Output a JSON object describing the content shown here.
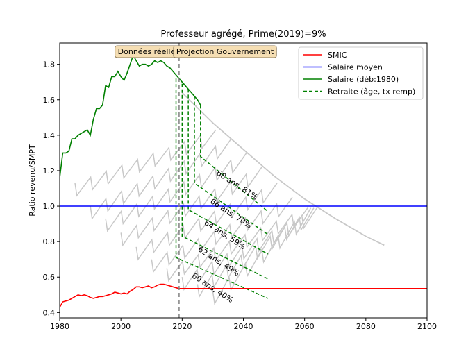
{
  "chart_data": {
    "type": "line",
    "title": "Professeur agrégé, Prime(2019)=9%",
    "xlabel": "",
    "ylabel": "Ratio revenu/SMPT",
    "xlim": [
      1980,
      2100
    ],
    "ylim": [
      0.37,
      1.92
    ],
    "xticks": [
      1980,
      2000,
      2020,
      2040,
      2060,
      2080,
      2100
    ],
    "yticks": [
      0.4,
      0.6,
      0.8,
      1.0,
      1.2,
      1.4,
      1.6,
      1.8
    ],
    "grid": false,
    "legend_position": "top-right",
    "colors": {
      "smic": "#ff0000",
      "salaire_moyen": "#0000ff",
      "salaire": "#008000",
      "retraite": "#008000",
      "background_curves": "#c8c8c8",
      "divider": "#808080",
      "box_fill": "#f5deb3",
      "box_edge": "#8c7a5a"
    },
    "region_labels": [
      {
        "text": "Données réelles",
        "x": 2009
      },
      {
        "text": "Projection Gouvernement",
        "x": 2034
      }
    ],
    "divider_x": 2019,
    "series": [
      {
        "name": "SMIC",
        "color": "#ff0000",
        "style": "solid",
        "x": [
          1980,
          1981,
          1982,
          1983,
          1984,
          1985,
          1986,
          1987,
          1988,
          1989,
          1990,
          1991,
          1992,
          1993,
          1994,
          1995,
          1996,
          1997,
          1998,
          1999,
          2000,
          2001,
          2002,
          2003,
          2004,
          2005,
          2006,
          2007,
          2008,
          2009,
          2010,
          2011,
          2012,
          2013,
          2014,
          2015,
          2016,
          2017,
          2018,
          2019,
          2040,
          2060,
          2080,
          2100
        ],
        "y": [
          0.43,
          0.46,
          0.465,
          0.47,
          0.48,
          0.49,
          0.5,
          0.495,
          0.5,
          0.495,
          0.485,
          0.48,
          0.485,
          0.49,
          0.49,
          0.495,
          0.5,
          0.505,
          0.515,
          0.51,
          0.505,
          0.51,
          0.505,
          0.52,
          0.53,
          0.545,
          0.545,
          0.54,
          0.545,
          0.55,
          0.54,
          0.545,
          0.555,
          0.56,
          0.56,
          0.555,
          0.55,
          0.545,
          0.54,
          0.535,
          0.535,
          0.535,
          0.535,
          0.535
        ]
      },
      {
        "name": "Salaire moyen",
        "color": "#0000ff",
        "style": "solid",
        "x": [
          1980,
          2100
        ],
        "y": [
          1.0,
          1.0
        ]
      },
      {
        "name": "Salaire (déb:1980)",
        "color": "#008000",
        "style": "solid",
        "x": [
          1980,
          1981,
          1982,
          1983,
          1984,
          1985,
          1986,
          1987,
          1988,
          1989,
          1990,
          1991,
          1992,
          1993,
          1994,
          1995,
          1996,
          1997,
          1998,
          1999,
          2000,
          2001,
          2002,
          2003,
          2004,
          2005,
          2006,
          2007,
          2008,
          2009,
          2010,
          2011,
          2012,
          2013,
          2014,
          2015,
          2016,
          2017,
          2018,
          2019,
          2020,
          2021,
          2022,
          2023,
          2024,
          2025,
          2026
        ],
        "y": [
          1.16,
          1.3,
          1.3,
          1.31,
          1.38,
          1.38,
          1.4,
          1.41,
          1.42,
          1.43,
          1.4,
          1.49,
          1.55,
          1.55,
          1.57,
          1.68,
          1.67,
          1.73,
          1.73,
          1.76,
          1.73,
          1.71,
          1.75,
          1.8,
          1.85,
          1.82,
          1.79,
          1.8,
          1.8,
          1.79,
          1.8,
          1.82,
          1.81,
          1.82,
          1.81,
          1.79,
          1.78,
          1.76,
          1.74,
          1.72,
          1.7,
          1.68,
          1.66,
          1.64,
          1.62,
          1.6,
          1.57
        ]
      }
    ],
    "retraite": {
      "name": "Retraite (âge, tx remp)",
      "color": "#008000",
      "style": "dashed",
      "scenarios": [
        {
          "label": "60 ans, 40%",
          "x_retire": 2018,
          "y_salary": 1.72,
          "y_start": 0.71,
          "x_end": 2048,
          "y_end": 0.48
        },
        {
          "label": "62 ans, 49%",
          "x_retire": 2020,
          "y_salary": 1.69,
          "y_start": 0.83,
          "x_end": 2048,
          "y_end": 0.59
        },
        {
          "label": "64 ans, 59%",
          "x_retire": 2022,
          "y_salary": 1.66,
          "y_start": 0.98,
          "x_end": 2048,
          "y_end": 0.73
        },
        {
          "label": "66 ans, 70%",
          "x_retire": 2024,
          "y_salary": 1.62,
          "y_start": 1.13,
          "x_end": 2048,
          "y_end": 0.84
        },
        {
          "label": "68 ans, 81%",
          "x_retire": 2026,
          "y_salary": 1.57,
          "y_start": 1.28,
          "x_end": 2048,
          "y_end": 0.97
        }
      ]
    },
    "annotations": [
      {
        "text": "68 ans, 81%",
        "x": 2031,
        "y": 1.18,
        "angle": 33
      },
      {
        "text": "66 ans, 70%",
        "x": 2029,
        "y": 1.02,
        "angle": 33
      },
      {
        "text": "64 ans, 59%",
        "x": 2027,
        "y": 0.9,
        "angle": 33
      },
      {
        "text": "62 ans, 49%",
        "x": 2025,
        "y": 0.75,
        "angle": 33
      },
      {
        "text": "60 ans, 40%",
        "x": 2023,
        "y": 0.6,
        "angle": 33
      }
    ],
    "background_curves": {
      "color": "#c8c8c8",
      "envelope": {
        "x": [
          2020,
          2030,
          2040,
          2050,
          2060,
          2070,
          2080,
          2086
        ],
        "y": [
          1.64,
          1.47,
          1.32,
          1.17,
          1.04,
          0.93,
          0.83,
          0.78
        ]
      },
      "staircases": [
        {
          "x0": 1985,
          "y0": 1.13,
          "x1": 2031,
          "y1": 1.43
        },
        {
          "x0": 1990,
          "y0": 1.0,
          "x1": 2036,
          "y1": 1.38
        },
        {
          "x0": 1995,
          "y0": 0.93,
          "x1": 2041,
          "y1": 1.3
        },
        {
          "x0": 2000,
          "y0": 0.85,
          "x1": 2046,
          "y1": 1.22
        },
        {
          "x0": 2005,
          "y0": 0.77,
          "x1": 2051,
          "y1": 1.13
        },
        {
          "x0": 2010,
          "y0": 0.7,
          "x1": 2056,
          "y1": 1.05
        },
        {
          "x0": 2015,
          "y0": 0.65,
          "x1": 2061,
          "y1": 0.99
        },
        {
          "x0": 2020,
          "y0": 0.6,
          "x1": 2064,
          "y1": 0.99
        },
        {
          "x0": 2025,
          "y0": 0.56,
          "x1": 2063,
          "y1": 0.99
        },
        {
          "x0": 2030,
          "y0": 0.52,
          "x1": 2062,
          "y1": 0.99
        }
      ]
    }
  }
}
